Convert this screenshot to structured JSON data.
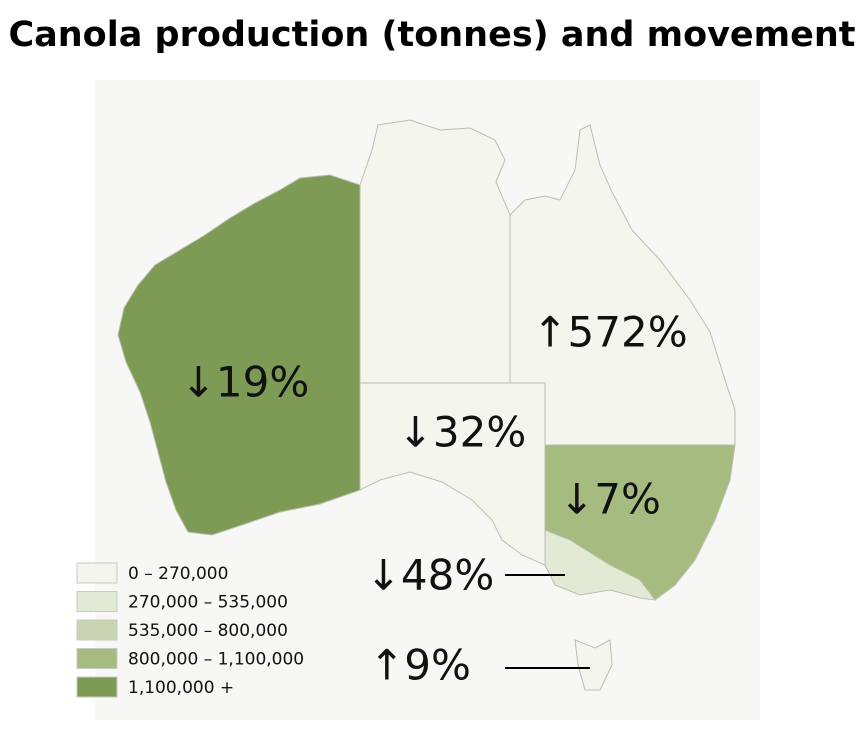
{
  "title": "Canola production (tonnes) and movement",
  "legend": [
    {
      "label": "0 – 270,000",
      "color": "#f4f6ee"
    },
    {
      "label": "270,000 – 535,000",
      "color": "#e2e9d5"
    },
    {
      "label": "535,000 – 800,000",
      "color": "#c9d5b2"
    },
    {
      "label": "800,000 – 1,100,000",
      "color": "#a6bb80"
    },
    {
      "label": "1,100,000 +",
      "color": "#7d9b54"
    }
  ],
  "regions": [
    {
      "label": "↓19%",
      "color": "#7d9b54"
    },
    {
      "label": "↑572%",
      "color": "#f4f6ee"
    },
    {
      "label": "↓32%",
      "color": "#f4f6ee"
    },
    {
      "label": "↓7%",
      "color": "#a6bb80"
    },
    {
      "label": "↓48%",
      "color": "#e2e9d5"
    },
    {
      "label": "↑9%",
      "color": "#f4f6ee"
    },
    {
      "color": "#f4f6ee"
    }
  ]
}
